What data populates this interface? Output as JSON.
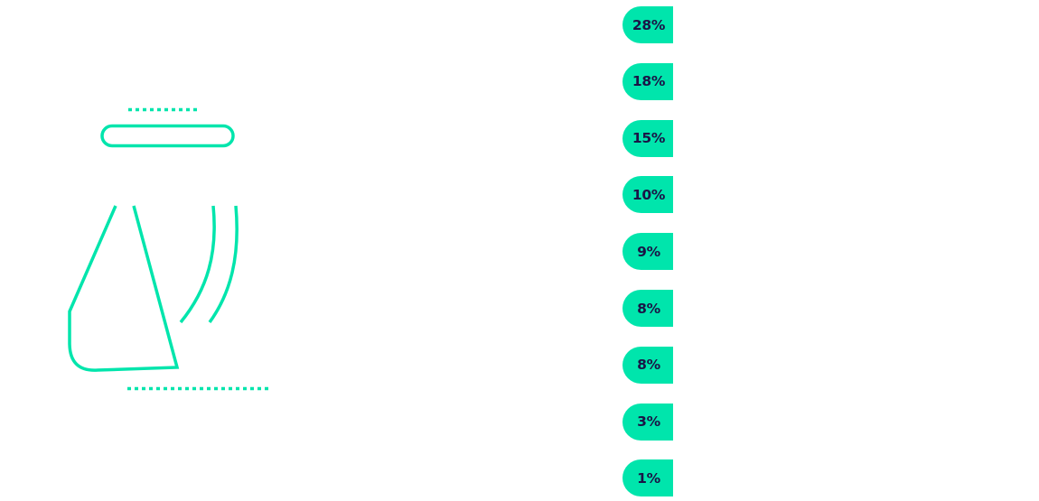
{
  "colors": {
    "accent": "#00e5ac",
    "label": "#1a1446",
    "background": "#ffffff"
  },
  "illustration": {
    "icon": "ironing-tool-icon"
  },
  "chart_data": {
    "type": "bar",
    "title": "",
    "xlabel": "",
    "ylabel": "",
    "unit": "%",
    "categories": [],
    "values": [
      28,
      18,
      15,
      10,
      9,
      8,
      8,
      3,
      1
    ],
    "labels": [
      "28%",
      "18%",
      "15%",
      "10%",
      "9%",
      "8%",
      "8%",
      "3%",
      "1%"
    ]
  }
}
